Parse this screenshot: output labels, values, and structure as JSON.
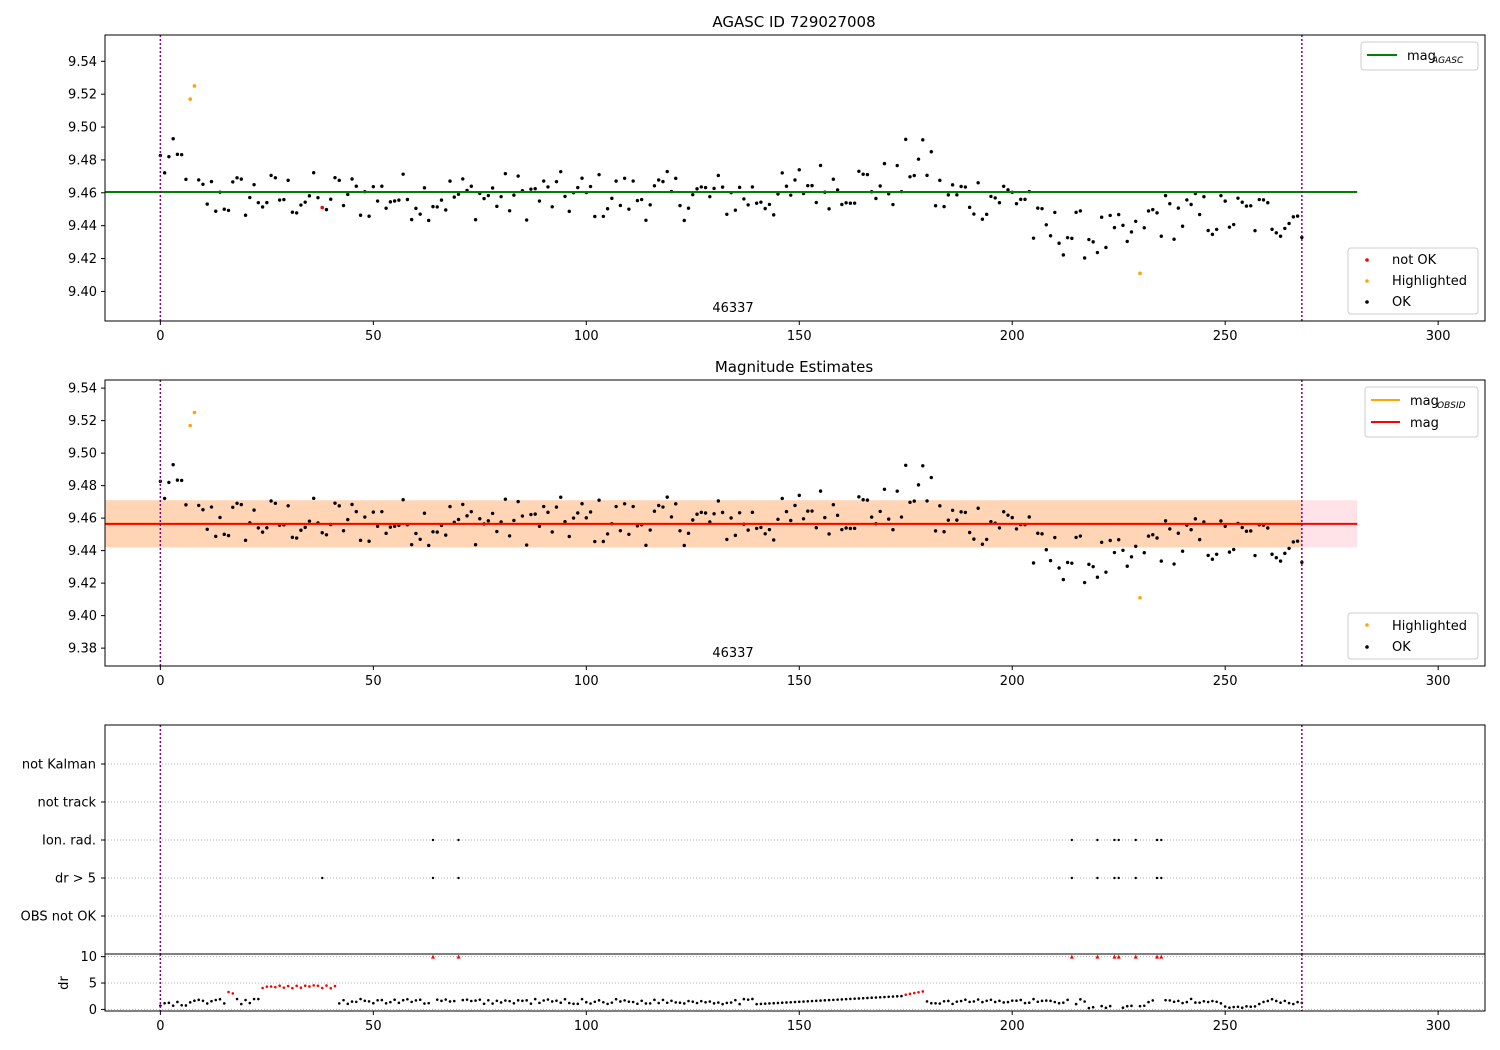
{
  "chart_data": [
    {
      "type": "scatter",
      "title": "AGASC ID 729027008",
      "obsid_label": "46337",
      "xlim": [
        -13,
        311
      ],
      "ylim": [
        9.382,
        9.556
      ],
      "xticks": [
        "0",
        "50",
        "100",
        "150",
        "200",
        "250",
        "300"
      ],
      "yticks": [
        "9.40",
        "9.42",
        "9.44",
        "9.46",
        "9.48",
        "9.50",
        "9.52",
        "9.54"
      ],
      "vlines": [
        0,
        268
      ],
      "hline": {
        "name": "mag",
        "sub": "AGASC",
        "value": 9.4605,
        "x_range": [
          -13,
          281
        ],
        "color": "#008000"
      },
      "legend_lines": [
        {
          "label": "mag",
          "sub": "AGASC",
          "color": "#008000"
        }
      ],
      "legend_points": [
        {
          "label": "not OK",
          "color": "#ff0000"
        },
        {
          "label": "Highlighted",
          "color": "#ffa500"
        },
        {
          "label": "OK",
          "color": "#000000"
        }
      ],
      "not_ok_points": [
        [
          38,
          9.451
        ]
      ],
      "highlighted_points": [
        [
          7,
          9.517
        ],
        [
          8,
          9.525
        ],
        [
          230,
          9.411
        ]
      ]
    },
    {
      "type": "scatter",
      "title": "Magnitude Estimates",
      "obsid_label": "46337",
      "xlim": [
        -13,
        311
      ],
      "ylim": [
        9.369,
        9.545
      ],
      "xticks": [
        "0",
        "50",
        "100",
        "150",
        "200",
        "250",
        "300"
      ],
      "yticks": [
        "9.38",
        "9.40",
        "9.42",
        "9.44",
        "9.46",
        "9.48",
        "9.50",
        "9.52",
        "9.54"
      ],
      "vlines": [
        0,
        268
      ],
      "band": {
        "y0": 9.442,
        "y1": 9.471,
        "x_range": [
          -13,
          281
        ]
      },
      "inner_band": {
        "y0": 9.442,
        "y1": 9.471,
        "x_range": [
          -13,
          268
        ]
      },
      "hlines": [
        {
          "name": "mag",
          "sub": "OBSID",
          "value": 9.4565,
          "x_range": [
            -13,
            268
          ],
          "color": "#ffa500"
        },
        {
          "name": "mag",
          "value": 9.4565,
          "x_range": [
            -13,
            281
          ],
          "color": "#ff0000"
        }
      ],
      "legend_lines": [
        {
          "label": "mag",
          "sub": "OBSID",
          "color": "#ffa500"
        },
        {
          "label": "mag",
          "color": "#ff0000"
        }
      ],
      "legend_points": [
        {
          "label": "Highlighted",
          "color": "#ffa500"
        },
        {
          "label": "OK",
          "color": "#000000"
        }
      ],
      "highlighted_points": [
        [
          7,
          9.517
        ],
        [
          8,
          9.525
        ],
        [
          230,
          9.411
        ]
      ]
    },
    {
      "type": "scatter",
      "title": "",
      "xlim": [
        -13,
        311
      ],
      "flag_rows": [
        "not Kalman",
        "not track",
        "Ion. rad.",
        "dr > 5",
        "OBS not OK"
      ],
      "flags": {
        "Ion. rad.": [
          64,
          70,
          214,
          220,
          224,
          225,
          229,
          234,
          235
        ],
        "dr > 5": [
          38,
          64,
          70,
          214,
          220,
          224,
          225,
          229,
          234,
          235
        ]
      },
      "vlines": [
        0,
        268
      ]
    },
    {
      "type": "scatter",
      "title": "",
      "ylabel": "dr",
      "xlim": [
        -13,
        311
      ],
      "ylim": [
        -0.3,
        10.5
      ],
      "xticks": [
        "0",
        "50",
        "100",
        "150",
        "200",
        "250",
        "300"
      ],
      "yticks": [
        "0",
        "5",
        "10"
      ],
      "vlines": [
        0,
        268
      ],
      "red_ranges": [
        [
          16,
          17
        ],
        [
          24,
          41
        ],
        [
          175,
          179
        ]
      ],
      "capped_points_value": 10,
      "capped_points": [
        64,
        70,
        214,
        220,
        224,
        225,
        229,
        234,
        235
      ]
    }
  ]
}
